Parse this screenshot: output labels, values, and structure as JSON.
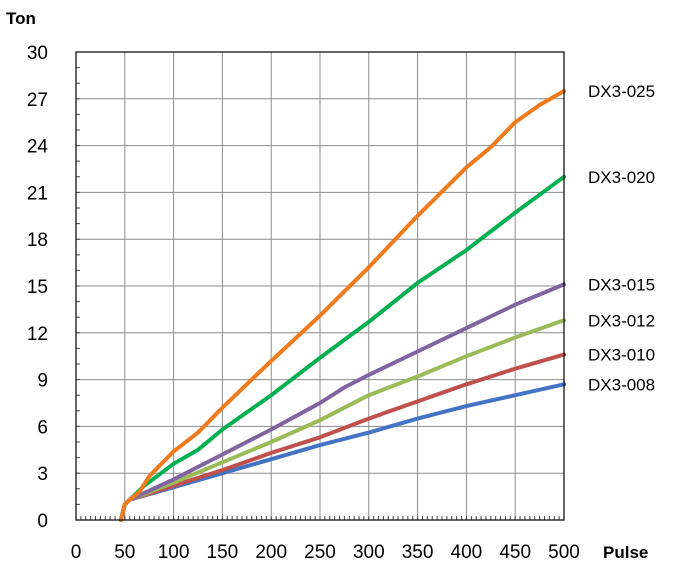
{
  "chart_data": {
    "type": "line",
    "xlabel": "Pulse",
    "ylabel": "Ton",
    "xlim": [
      0,
      500
    ],
    "ylim": [
      0,
      30
    ],
    "x_ticks": [
      0,
      50,
      100,
      150,
      200,
      250,
      300,
      350,
      400,
      450,
      500
    ],
    "y_ticks": [
      0,
      3,
      6,
      9,
      12,
      15,
      18,
      21,
      24,
      27,
      30
    ],
    "grid": true,
    "legend": "inline-right",
    "series": [
      {
        "name": "DX3-008",
        "color": "#4472C4",
        "x": [
          46,
          50,
          55,
          100,
          150,
          200,
          250,
          300,
          350,
          400,
          450,
          500
        ],
        "y": [
          0,
          1.0,
          1.3,
          2.1,
          3.0,
          3.9,
          4.8,
          5.6,
          6.5,
          7.3,
          8.0,
          8.7
        ]
      },
      {
        "name": "DX3-010",
        "color": "#C0504D",
        "x": [
          46,
          50,
          55,
          100,
          150,
          200,
          250,
          300,
          350,
          400,
          450,
          500
        ],
        "y": [
          0,
          1.0,
          1.3,
          2.2,
          3.2,
          4.3,
          5.3,
          6.5,
          7.6,
          8.7,
          9.7,
          10.6
        ]
      },
      {
        "name": "DX3-012",
        "color": "#9BBB59",
        "x": [
          46,
          50,
          55,
          100,
          150,
          200,
          250,
          275,
          300,
          350,
          400,
          450,
          500
        ],
        "y": [
          0,
          1.0,
          1.3,
          2.4,
          3.7,
          5.0,
          6.4,
          7.2,
          8.0,
          9.2,
          10.5,
          11.7,
          12.8
        ]
      },
      {
        "name": "DX3-015",
        "color": "#8064A2",
        "x": [
          46,
          50,
          55,
          100,
          150,
          200,
          250,
          275,
          300,
          350,
          400,
          450,
          500
        ],
        "y": [
          0,
          1.0,
          1.3,
          2.6,
          4.2,
          5.8,
          7.5,
          8.5,
          9.3,
          10.8,
          12.3,
          13.8,
          15.1
        ]
      },
      {
        "name": "DX3-020",
        "color": "#00B050",
        "x": [
          46,
          50,
          55,
          70,
          100,
          125,
          150,
          200,
          250,
          300,
          350,
          400,
          450,
          500
        ],
        "y": [
          0,
          1.0,
          1.3,
          2.2,
          3.6,
          4.5,
          5.8,
          8.0,
          10.4,
          12.7,
          15.2,
          17.3,
          19.7,
          22.0
        ]
      },
      {
        "name": "DX3-025",
        "color": "#F07A1C",
        "x": [
          46,
          50,
          55,
          65,
          75,
          100,
          125,
          150,
          200,
          250,
          300,
          350,
          400,
          425,
          450,
          475,
          500
        ],
        "y": [
          0,
          1.0,
          1.3,
          1.8,
          2.8,
          4.4,
          5.6,
          7.2,
          10.2,
          13.1,
          16.2,
          19.5,
          22.6,
          23.9,
          25.5,
          26.6,
          27.5
        ]
      }
    ]
  }
}
